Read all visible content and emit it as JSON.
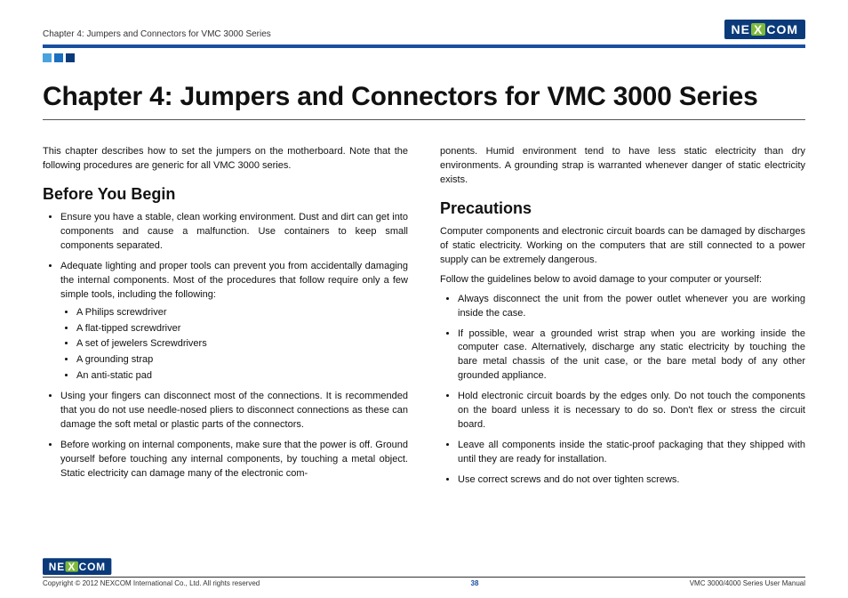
{
  "header": {
    "chapter_label": "Chapter 4: Jumpers and Connectors for VMC 3000 Series",
    "logo_text_left": "NE",
    "logo_text_x": "X",
    "logo_text_right": "COM",
    "square_colors": [
      "#4aa3df",
      "#1a6fc0",
      "#0a3a7a"
    ]
  },
  "title": "Chapter 4: Jumpers and Connectors for VMC 3000 Series",
  "left": {
    "intro": "This chapter describes how to set the jumpers on the motherboard. Note that the following procedures are generic for all VMC 3000 series.",
    "section_title": "Before You Begin",
    "bullets": [
      "Ensure you have a stable, clean working environment. Dust and dirt can get into components and cause a malfunction. Use containers to keep small components separated.",
      "Adequate lighting and proper tools can prevent you from accidentally damaging the internal components. Most of the procedures that follow require only a few simple tools, including the following:",
      "Using your fingers can disconnect most of the connections. It is recommended that you do not use needle-nosed pliers to disconnect connections as these can damage the soft metal or plastic parts of the connectors.",
      "Before working on internal components, make sure that the power is off. Ground yourself before touching any internal components, by touching a metal object. Static electricity can damage many of the electronic com-"
    ],
    "tools": [
      "A Philips screwdriver",
      "A flat-tipped screwdriver",
      "A set of jewelers Screwdrivers",
      "A grounding strap",
      "An anti-static pad"
    ]
  },
  "right": {
    "cont": "ponents. Humid environment tend to have less static electricity than dry environments. A grounding strap is warranted whenever danger of static electricity exists.",
    "section_title": "Precautions",
    "para1": "Computer components and electronic circuit boards can be damaged by discharges of static electricity. Working on the computers that are still connected to a power supply can be extremely dangerous.",
    "para2": "Follow the guidelines below to avoid damage to your computer or yourself:",
    "bullets": [
      "Always disconnect the unit from the power outlet whenever you are working inside the case.",
      "If possible, wear a grounded wrist strap when you are working inside the computer case. Alternatively, discharge any static electricity by touching the bare metal chassis of the unit case, or the bare metal body of any other grounded appliance.",
      "Hold electronic circuit boards by the edges only. Do not touch the components on the board unless it is necessary to do so. Don't flex or stress the circuit board.",
      "Leave all components inside the static-proof packaging that they shipped with until they are ready for installation.",
      "Use correct screws and do not over tighten screws."
    ]
  },
  "footer": {
    "copyright": "Copyright © 2012 NEXCOM International Co., Ltd. All rights reserved",
    "page_number": "38",
    "manual": "VMC 3000/4000 Series User Manual"
  }
}
